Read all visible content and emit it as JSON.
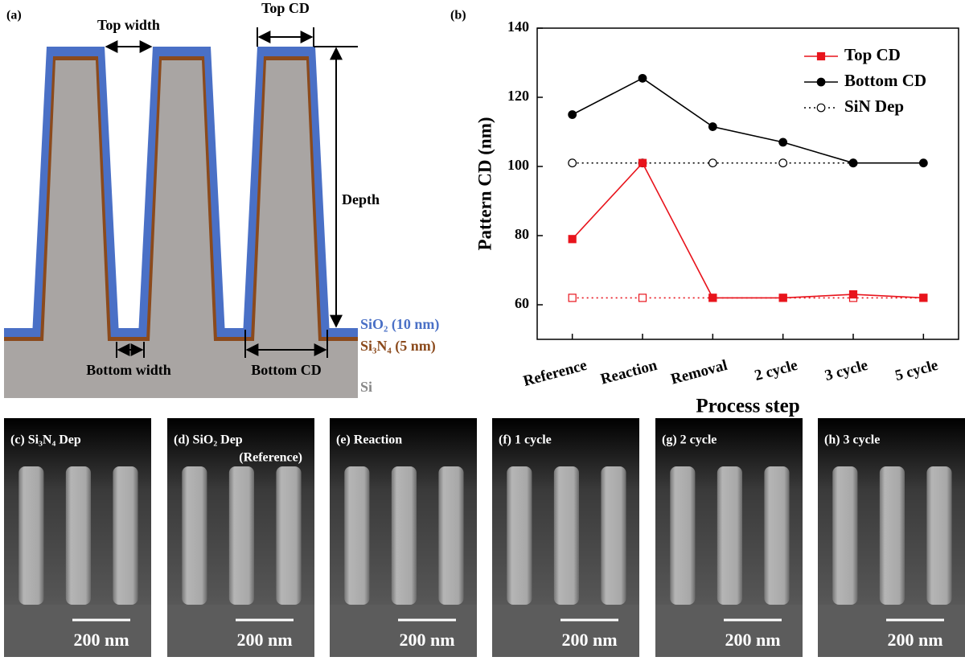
{
  "panel_a": {
    "label": "(a)",
    "top_width": "Top width",
    "top_cd": "Top CD",
    "depth": "Depth",
    "sio2": "SiO₂ (10 nm)",
    "si3n4": "Si₃N₄ (5 nm)",
    "si": "Si",
    "bottom_width": "Bottom width",
    "bottom_cd": "Bottom CD"
  },
  "chart_data": {
    "type": "line",
    "panel_label": "(b)",
    "xlabel": "Process step",
    "ylabel": "Pattern CD (nm)",
    "categories": [
      "Reference",
      "Reaction",
      "Removal",
      "2 cycle",
      "3 cycle",
      "5 cycle"
    ],
    "series": [
      {
        "name": "Top CD",
        "color": "#e8141c",
        "marker": "square",
        "linestyle": "solid",
        "values": [
          79,
          101,
          62,
          62,
          63,
          62
        ]
      },
      {
        "name": "Bottom CD",
        "color": "#000000",
        "marker": "circle",
        "linestyle": "solid",
        "values": [
          115,
          125.5,
          111.5,
          107,
          101,
          101
        ]
      },
      {
        "name": "SiN Dep",
        "color": "#000000",
        "marker": "open-circle",
        "linestyle": "dotted",
        "values": [
          101,
          101,
          101,
          101,
          101,
          null
        ]
      },
      {
        "color": "#e8141c",
        "marker": "open-square",
        "linestyle": "dotted",
        "values": [
          62,
          62,
          62,
          62,
          62,
          62
        ]
      }
    ],
    "ylim": [
      50,
      140
    ],
    "yticks": [
      60,
      80,
      100,
      120,
      140
    ],
    "legend": "upper right"
  },
  "sem_panels": [
    {
      "label": "(c) Si₃N₄ Dep",
      "scale_bar": "200 nm"
    },
    {
      "label": "(d) SiO₂ Dep",
      "sublabel": "(Reference)",
      "scale_bar": "200 nm"
    },
    {
      "label": "(e) Reaction",
      "scale_bar": "200 nm"
    },
    {
      "label": "(f) 1 cycle",
      "scale_bar": "200 nm"
    },
    {
      "label": "(g) 2 cycle",
      "scale_bar": "200 nm"
    },
    {
      "label": "(h) 3 cycle",
      "scale_bar": "200 nm"
    }
  ]
}
